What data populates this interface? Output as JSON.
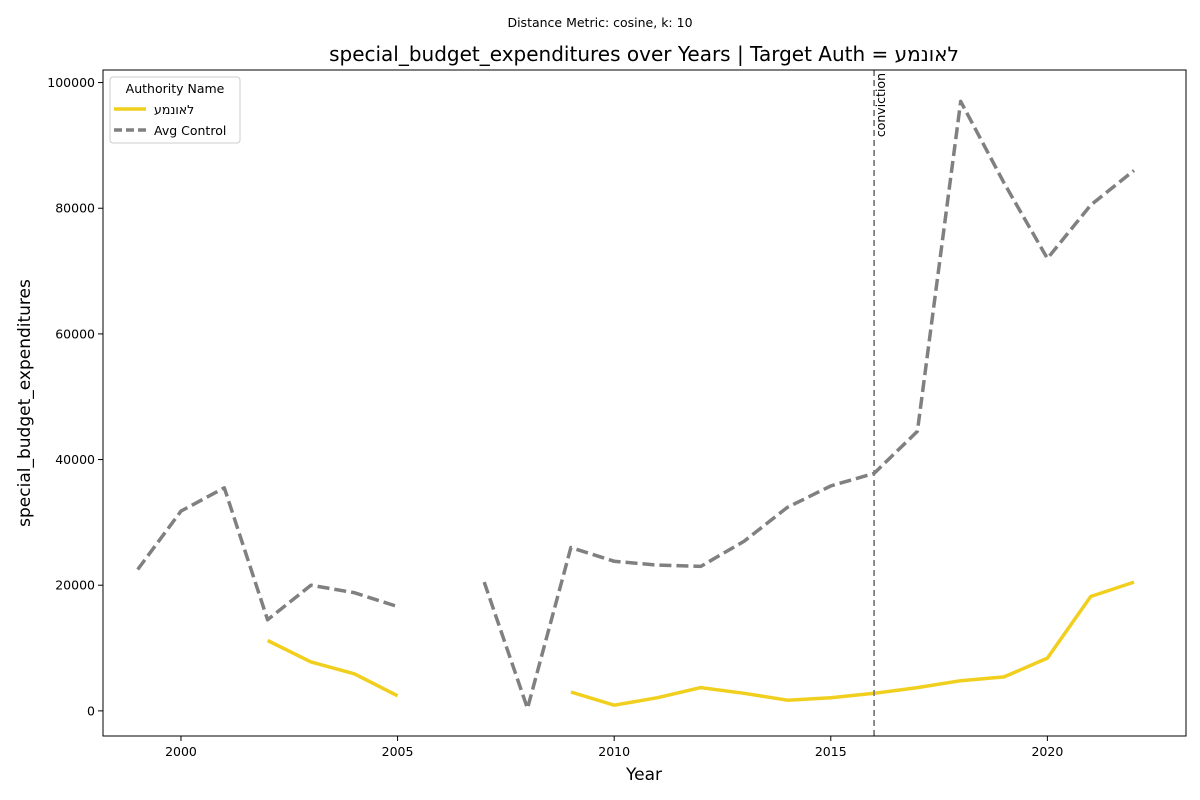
{
  "suptitle": "Distance Metric: cosine, k: 10",
  "chart_data": {
    "type": "line",
    "title": "special_budget_expenditures over Years | Target Auth = לאונמע",
    "xlabel": "Year",
    "ylabel": "special_budget_expenditures",
    "xlim": [
      1998.2,
      2023.2
    ],
    "ylim": [
      -4000,
      102000
    ],
    "x_ticks": [
      2000,
      2005,
      2010,
      2015,
      2020
    ],
    "y_ticks": [
      0,
      20000,
      40000,
      60000,
      80000,
      100000
    ],
    "grid": false,
    "legend": {
      "title": "Authority Name",
      "placement": "top-left"
    },
    "series": [
      {
        "name": "לאונמע",
        "color": "#f1cf1e",
        "style": "solid",
        "x": [
          1999,
          2000,
          2001,
          2002,
          2003,
          2004,
          2005,
          2006,
          2007,
          2008,
          2009,
          2010,
          2011,
          2012,
          2013,
          2014,
          2015,
          2016,
          2017,
          2018,
          2019,
          2020,
          2021,
          2022
        ],
        "y": [
          null,
          null,
          null,
          11200,
          7800,
          5900,
          2400,
          null,
          null,
          null,
          3000,
          900,
          2100,
          3700,
          2800,
          1700,
          2100,
          2800,
          3700,
          4800,
          5400,
          8400,
          18200,
          20500
        ]
      },
      {
        "name": "Avg Control",
        "color": "#808080",
        "style": "dashed",
        "x": [
          1999,
          2000,
          2001,
          2002,
          2003,
          2004,
          2005,
          2006,
          2007,
          2008,
          2009,
          2010,
          2011,
          2012,
          2013,
          2014,
          2015,
          2016,
          2017,
          2018,
          2019,
          2020,
          2021,
          2022
        ],
        "y": [
          22500,
          31800,
          35500,
          14500,
          20000,
          18800,
          16600,
          null,
          20500,
          400,
          26000,
          23800,
          23200,
          23000,
          27000,
          32400,
          35800,
          37800,
          44500,
          97000,
          84000,
          72000,
          80500,
          86000
        ]
      }
    ],
    "annotations": [
      {
        "type": "vline",
        "x": 2016,
        "label": "conviction",
        "color": "#808080",
        "style": "dashed"
      }
    ]
  }
}
